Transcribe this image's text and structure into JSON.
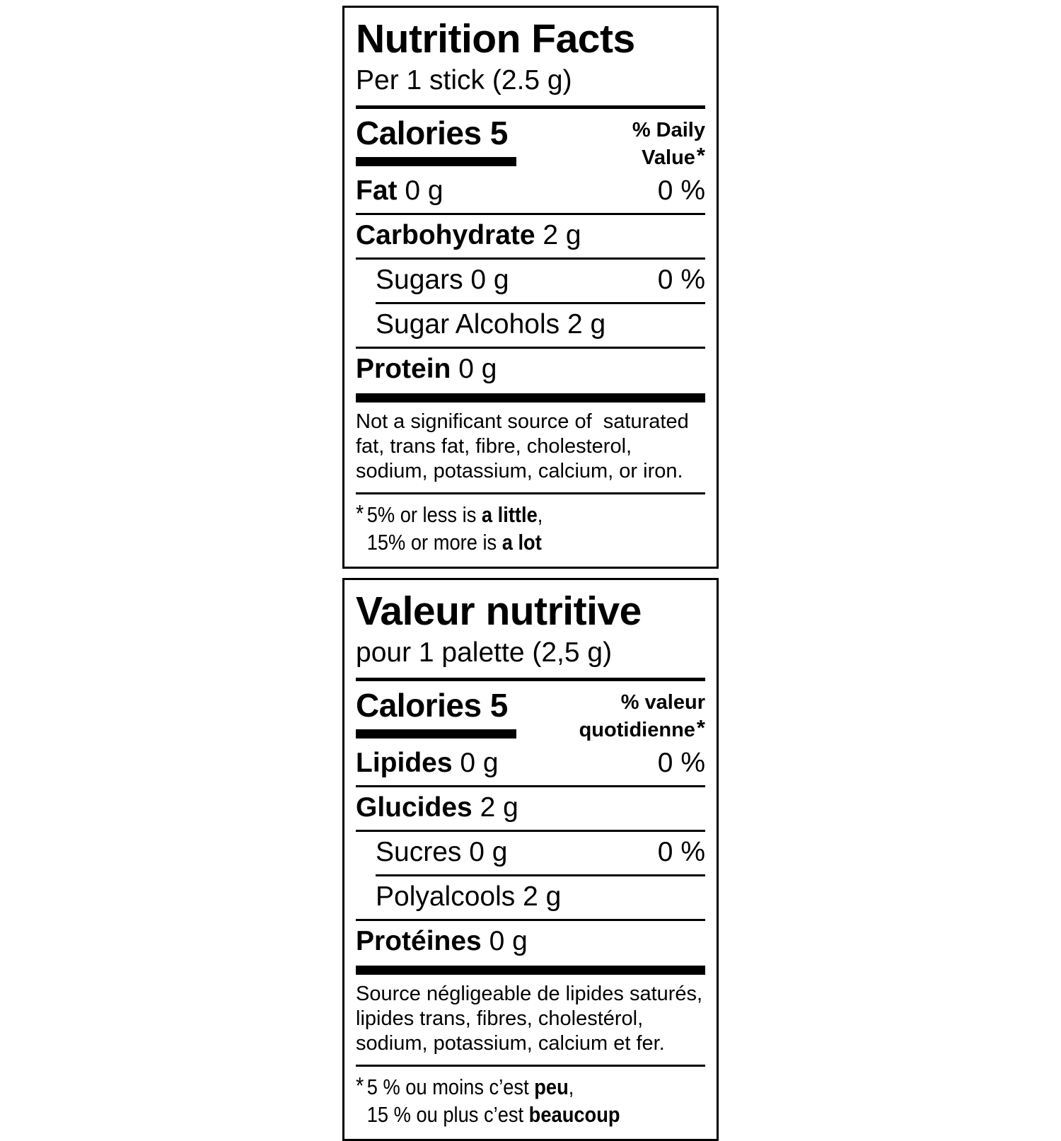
{
  "colors": {
    "ink": "#000000",
    "paper": "#ffffff"
  },
  "en": {
    "title": "Nutrition Facts",
    "serving": "Per 1 stick (2.5 g)",
    "calories": "Calories 5",
    "dv_line1": "% Daily",
    "dv_line2": "Value",
    "dv_star": "*",
    "rows": [
      {
        "label_bold": "Fat",
        "label_rest": " 0 g",
        "value": "0 %"
      },
      {
        "label_bold": "Carbohydrate",
        "label_rest": " 2 g",
        "value": ""
      },
      {
        "label_bold": "",
        "label_rest": "Sugars 0 g",
        "value": "0 %"
      },
      {
        "label_bold": "",
        "label_rest": "Sugar Alcohols 2 g",
        "value": ""
      },
      {
        "label_bold": "Protein",
        "label_rest": " 0 g",
        "value": ""
      }
    ],
    "note": "Not a significant source of  saturated\nfat, trans fat, fibre, cholesterol,\nsodium, potassium, calcium, or iron.",
    "footnote_star": "*",
    "footnote_line1_pre": "5% or less is ",
    "footnote_line1_bold": "a little",
    "footnote_line1_post": ",",
    "footnote_line2_pre": "15% or more is ",
    "footnote_line2_bold": "a lot",
    "footnote_line2_post": ""
  },
  "fr": {
    "title": "Valeur nutritive",
    "serving": "pour 1 palette (2,5 g)",
    "calories": "Calories 5",
    "dv_line1": "% valeur",
    "dv_line2": "quotidienne",
    "dv_star": "*",
    "rows": [
      {
        "label_bold": "Lipides",
        "label_rest": " 0 g",
        "value": "0 %"
      },
      {
        "label_bold": "Glucides",
        "label_rest": " 2 g",
        "value": ""
      },
      {
        "label_bold": "",
        "label_rest": "Sucres 0 g",
        "value": "0 %"
      },
      {
        "label_bold": "",
        "label_rest": "Polyalcools 2 g",
        "value": ""
      },
      {
        "label_bold": "Protéines",
        "label_rest": " 0 g",
        "value": ""
      }
    ],
    "note": "Source négligeable de lipides saturés,\nlipides trans, fibres, cholestérol,\nsodium, potassium, calcium et fer.",
    "footnote_star": "*",
    "footnote_line1_pre": "5 % ou moins c’est ",
    "footnote_line1_bold": "peu",
    "footnote_line1_post": ",",
    "footnote_line2_pre": "15 % ou plus c’est ",
    "footnote_line2_bold": "beaucoup",
    "footnote_line2_post": ""
  }
}
